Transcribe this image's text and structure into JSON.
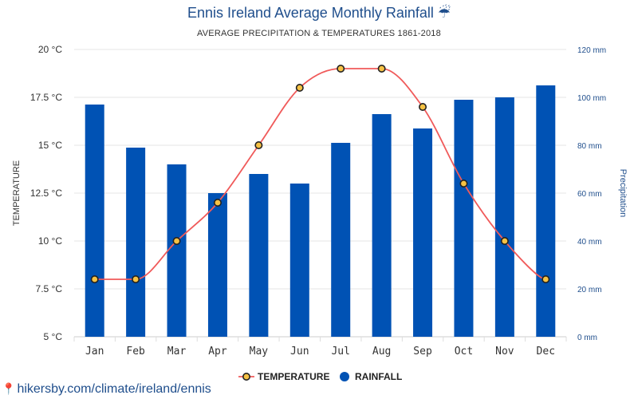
{
  "header": {
    "title": "Ennis Ireland Average Monthly Rainfall ☔",
    "subtitle": "AVERAGE PRECIPITATION & TEMPERATURES 1861-2018"
  },
  "footer": {
    "pin_icon": "map-pin-icon",
    "url": "hikersby.com/climate/ireland/ennis"
  },
  "colors": {
    "bars": "#0052b4",
    "line": "#f05a5a",
    "marker_fill": "#f6c244",
    "title": "#1f4e8c",
    "grid": "#e6e6e6"
  },
  "chart_data": {
    "type": "bar",
    "categories": [
      "Jan",
      "Feb",
      "Mar",
      "Apr",
      "May",
      "Jun",
      "Jul",
      "Aug",
      "Sep",
      "Oct",
      "Nov",
      "Dec"
    ],
    "series": [
      {
        "name": "RAINFALL",
        "type": "bar",
        "axis": "right",
        "values": [
          97,
          79,
          72,
          60,
          68,
          64,
          81,
          93,
          87,
          99,
          100,
          105
        ]
      },
      {
        "name": "TEMPERATURE",
        "type": "line",
        "axis": "left",
        "values": [
          8,
          8,
          10,
          12,
          15,
          18,
          19,
          19,
          17,
          13,
          10,
          8
        ]
      }
    ],
    "title": "Ennis Ireland Average Monthly Rainfall ☔",
    "subtitle": "AVERAGE PRECIPITATION & TEMPERATURES 1861-2018",
    "ylabel": "TEMPERATURE",
    "y2label": "Precipitation",
    "ylim": [
      5,
      20
    ],
    "y2lim": [
      0,
      120
    ],
    "yticks": [
      5,
      7.5,
      10,
      12.5,
      15,
      17.5,
      20
    ],
    "ytick_labels": [
      "5 °C",
      "7.5 °C",
      "10 °C",
      "12.5 °C",
      "15 °C",
      "17.5 °C",
      "20 °C"
    ],
    "y2ticks": [
      0,
      20,
      40,
      60,
      80,
      100,
      120
    ],
    "y2tick_labels": [
      "0 mm",
      "20 mm",
      "40 mm",
      "60 mm",
      "80 mm",
      "100 mm",
      "120 mm"
    ],
    "grid": true,
    "legend": {
      "position": "bottom",
      "items": [
        "TEMPERATURE",
        "RAINFALL"
      ]
    }
  }
}
